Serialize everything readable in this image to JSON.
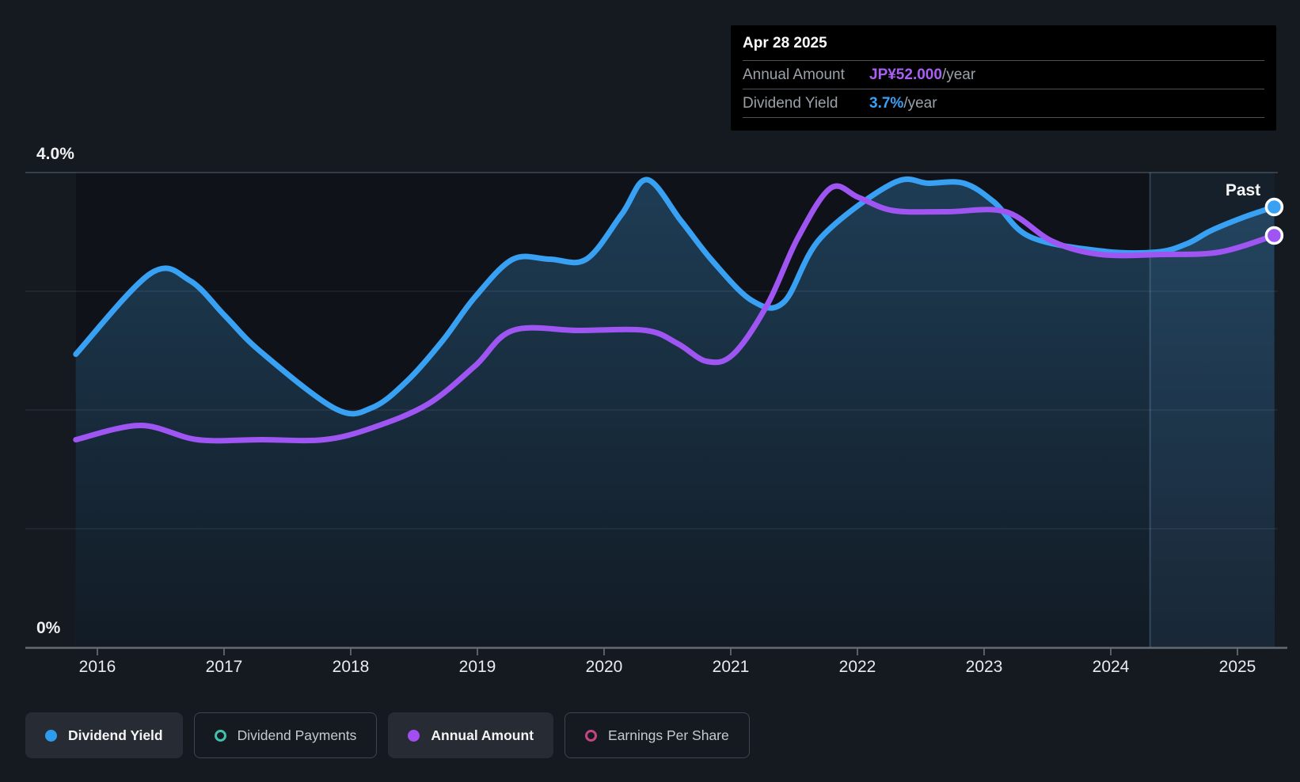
{
  "page": {
    "background": "#151a21"
  },
  "tooltip": {
    "date": "Apr 28 2025",
    "rows": [
      {
        "label": "Annual Amount",
        "value": "JP¥52.000",
        "suffix": "/year",
        "value_color": "#ab5ff7"
      },
      {
        "label": "Dividend Yield",
        "value": "3.7%",
        "suffix": "/year",
        "value_color": "#38a1f6"
      }
    ]
  },
  "legend": {
    "items": [
      {
        "label": "Dividend Yield",
        "marker": "dot",
        "color": "#2d9cee",
        "active": true
      },
      {
        "label": "Dividend Payments",
        "marker": "ring",
        "color": "#41c0ae",
        "active": false
      },
      {
        "label": "Annual Amount",
        "marker": "dot",
        "color": "#a34ef0",
        "active": true
      },
      {
        "label": "Earnings Per Share",
        "marker": "ring",
        "color": "#c54583",
        "active": false
      }
    ]
  },
  "chart_data": {
    "type": "line",
    "title": "",
    "x_ticks": [
      "2016",
      "2017",
      "2018",
      "2019",
      "2020",
      "2021",
      "2022",
      "2023",
      "2024",
      "2025"
    ],
    "x_range_years": [
      2015.83,
      2025.32
    ],
    "y_axis": {
      "top_label": "4.0%",
      "bottom_label": "0%",
      "range_pct": [
        0,
        4
      ]
    },
    "gridlines_pct": [
      0,
      1,
      2,
      3,
      4
    ],
    "annotations": {
      "past": "Past",
      "past_divider_year": 2024.31
    },
    "series": [
      {
        "name": "Dividend Yield",
        "color": "#38a1f4",
        "unit": "% yield (left axis)",
        "area_fill": true,
        "end_marker": true,
        "points": [
          [
            2015.83,
            2.47
          ],
          [
            2016.42,
            3.15
          ],
          [
            2016.73,
            3.09
          ],
          [
            2017.01,
            2.79
          ],
          [
            2017.29,
            2.49
          ],
          [
            2017.88,
            2.01
          ],
          [
            2018.17,
            2.02
          ],
          [
            2018.45,
            2.25
          ],
          [
            2018.73,
            2.59
          ],
          [
            2018.98,
            2.95
          ],
          [
            2019.28,
            3.27
          ],
          [
            2019.57,
            3.27
          ],
          [
            2019.86,
            3.27
          ],
          [
            2020.14,
            3.65
          ],
          [
            2020.34,
            3.94
          ],
          [
            2020.61,
            3.59
          ],
          [
            2020.86,
            3.25
          ],
          [
            2021.17,
            2.92
          ],
          [
            2021.42,
            2.91
          ],
          [
            2021.71,
            3.45
          ],
          [
            2022.28,
            3.91
          ],
          [
            2022.56,
            3.91
          ],
          [
            2022.84,
            3.91
          ],
          [
            2023.08,
            3.75
          ],
          [
            2023.36,
            3.46
          ],
          [
            2023.92,
            3.34
          ],
          [
            2024.36,
            3.33
          ],
          [
            2024.6,
            3.4
          ],
          [
            2024.79,
            3.51
          ],
          [
            2025.04,
            3.62
          ],
          [
            2025.29,
            3.71
          ]
        ]
      },
      {
        "name": "Annual Amount",
        "color": "#9e55f2",
        "unit": "JP¥/year (visual scale)",
        "area_fill": false,
        "end_marker": true,
        "points": [
          [
            2015.83,
            1.75
          ],
          [
            2016.34,
            1.87
          ],
          [
            2016.79,
            1.75
          ],
          [
            2017.3,
            1.75
          ],
          [
            2017.79,
            1.75
          ],
          [
            2018.17,
            1.85
          ],
          [
            2018.61,
            2.05
          ],
          [
            2018.98,
            2.37
          ],
          [
            2019.28,
            2.67
          ],
          [
            2019.8,
            2.67
          ],
          [
            2020.33,
            2.67
          ],
          [
            2020.58,
            2.56
          ],
          [
            2020.81,
            2.41
          ],
          [
            2021.02,
            2.47
          ],
          [
            2021.29,
            2.89
          ],
          [
            2021.53,
            3.45
          ],
          [
            2021.79,
            3.87
          ],
          [
            2022.01,
            3.79
          ],
          [
            2022.28,
            3.68
          ],
          [
            2022.7,
            3.67
          ],
          [
            2023.17,
            3.67
          ],
          [
            2023.54,
            3.42
          ],
          [
            2023.92,
            3.31
          ],
          [
            2024.4,
            3.31
          ],
          [
            2024.86,
            3.33
          ],
          [
            2025.29,
            3.47
          ]
        ]
      }
    ]
  }
}
